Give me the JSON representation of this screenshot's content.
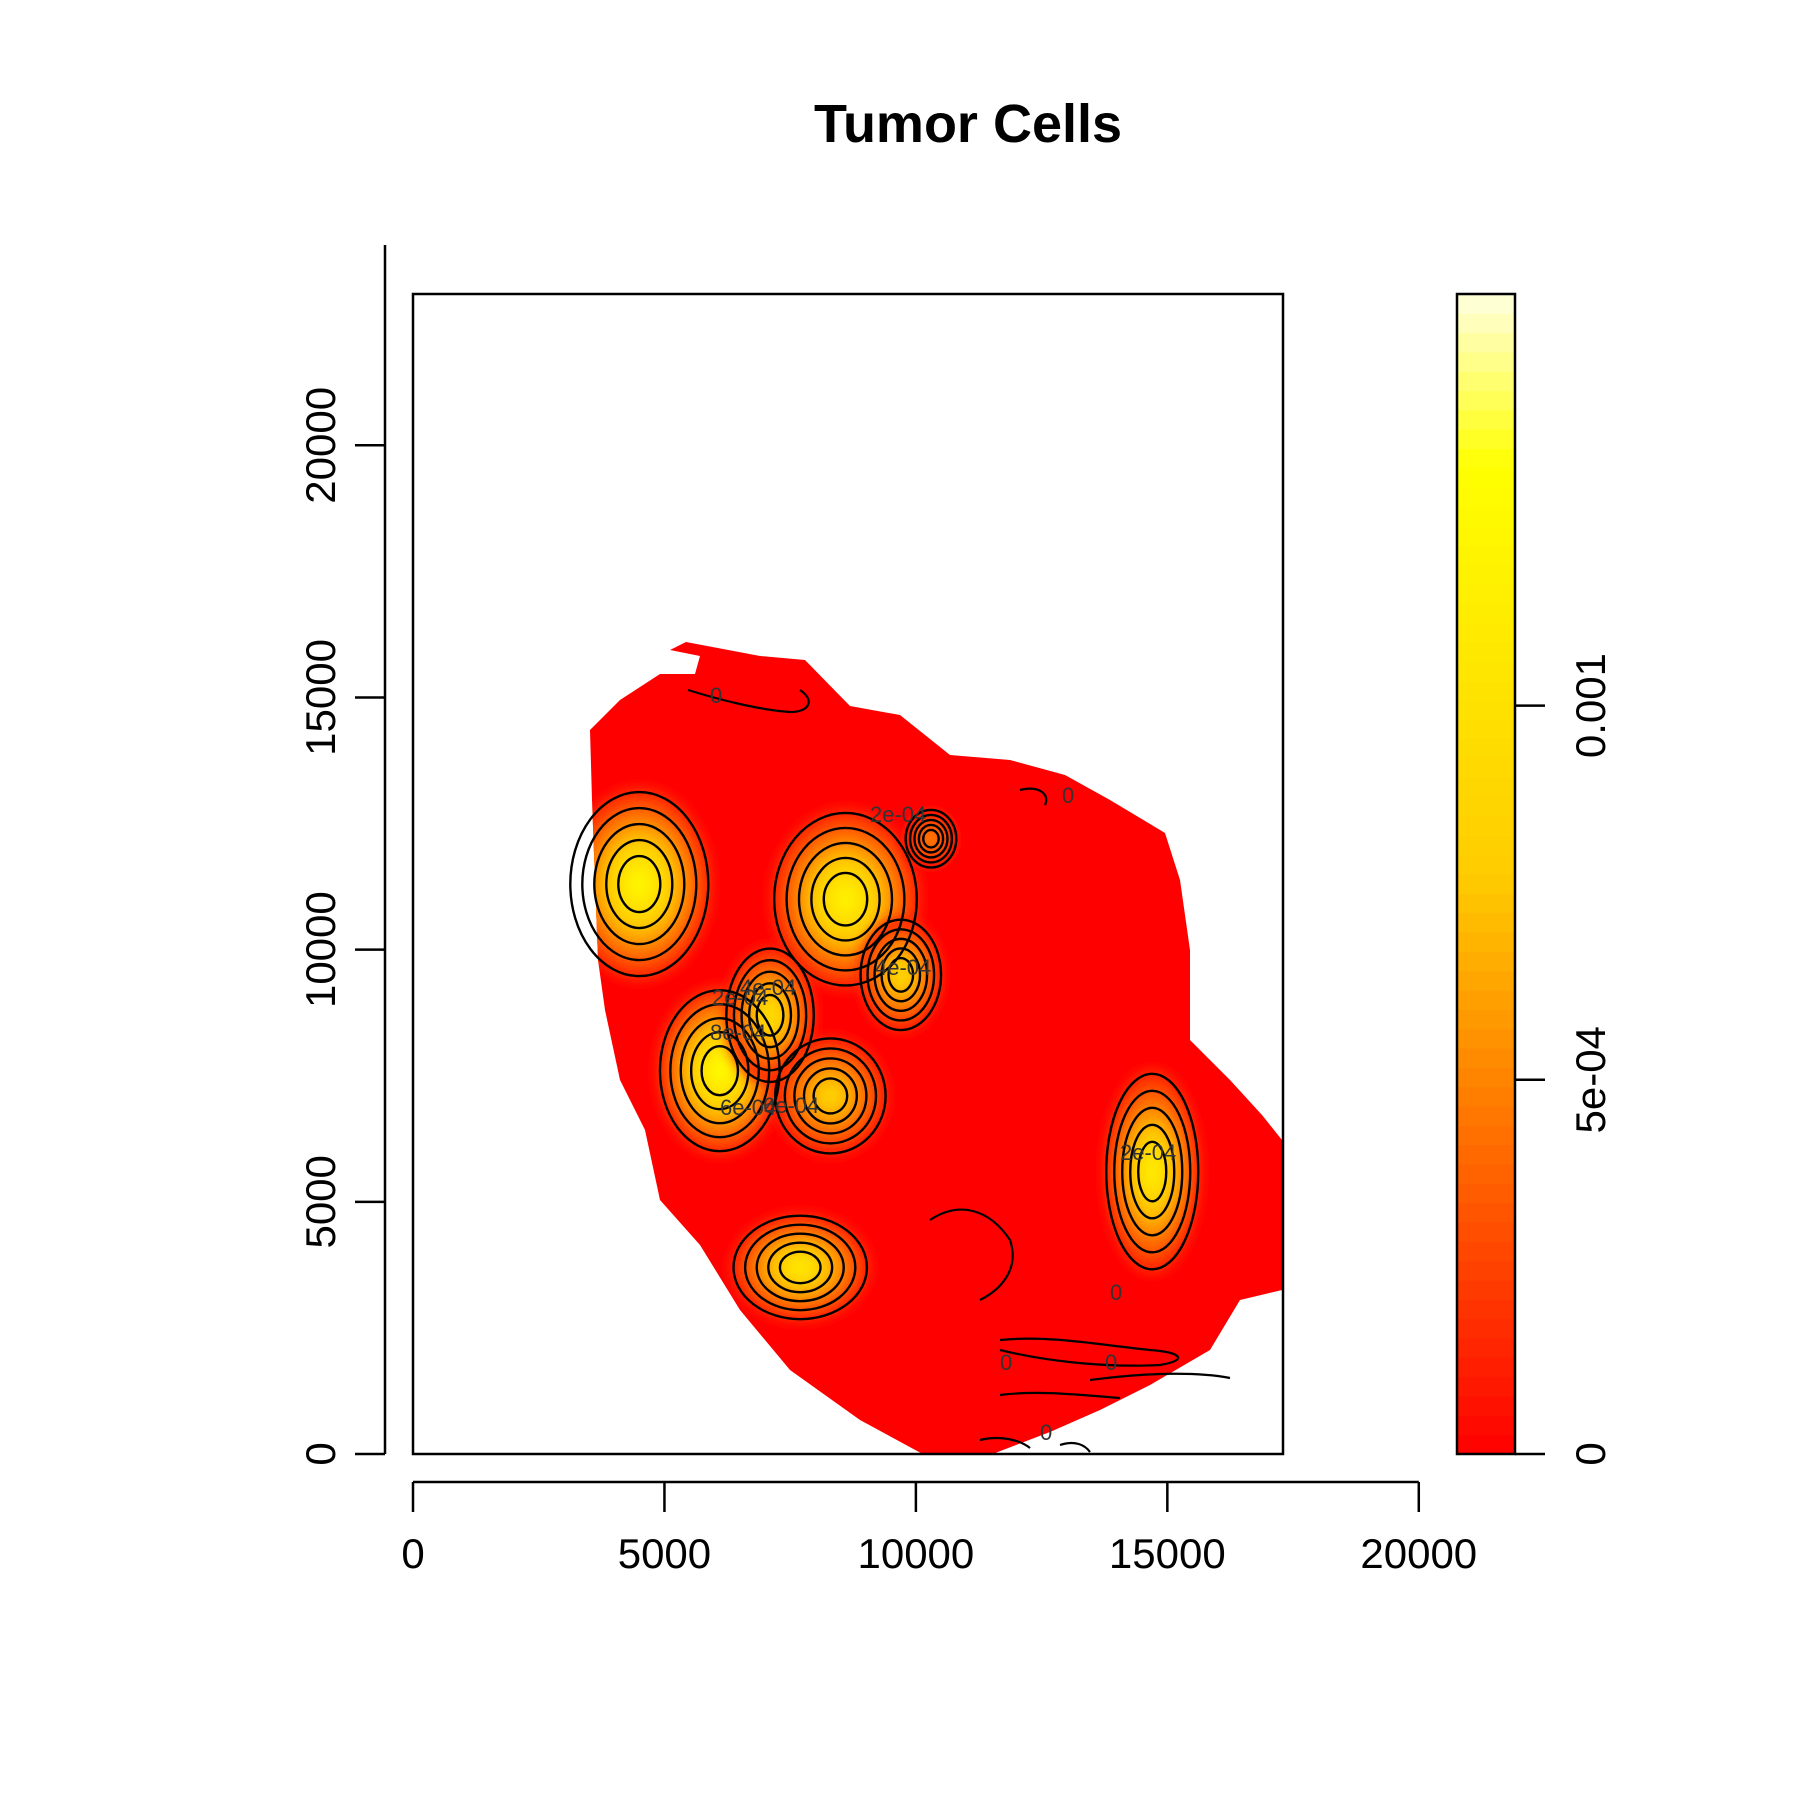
{
  "chart_data": {
    "type": "heatmap",
    "title": "Tumor Cells",
    "xlabel": "",
    "ylabel": "",
    "xlim": [
      0,
      17300
    ],
    "ylim": [
      0,
      23000
    ],
    "x_ticks": [
      "0",
      "5000",
      "10000",
      "15000",
      "20000"
    ],
    "y_ticks": [
      "0",
      "5000",
      "10000",
      "15000",
      "20000"
    ],
    "colorbar": {
      "range": [
        0,
        0.00155
      ],
      "ticks": [
        "0",
        "5e-04",
        "0.001"
      ],
      "tick_values": [
        0,
        0.0005,
        0.001
      ],
      "palette": "heat",
      "colors": [
        "#ff0000",
        "#ff8000",
        "#ffff00",
        "#ffffe0"
      ]
    },
    "hotspots": [
      {
        "x": 4500,
        "y": 11300,
        "peak": 0.0012
      },
      {
        "x": 8600,
        "y": 11000,
        "peak": 0.00115
      },
      {
        "x": 9700,
        "y": 9500,
        "peak": 0.0009
      },
      {
        "x": 10300,
        "y": 12200,
        "peak": 0.0005
      },
      {
        "x": 6100,
        "y": 7600,
        "peak": 0.00125
      },
      {
        "x": 7100,
        "y": 8700,
        "peak": 0.00095
      },
      {
        "x": 8300,
        "y": 7100,
        "peak": 0.00085
      },
      {
        "x": 7700,
        "y": 3700,
        "peak": 0.00105
      },
      {
        "x": 14700,
        "y": 5600,
        "peak": 0.0011
      }
    ],
    "contour_labels": [
      "0",
      "0",
      "0",
      "0",
      "0",
      "0",
      "2e-04",
      "2e-04",
      "2e-04",
      "4e-04",
      "4e-04",
      "6e-04",
      "6e-04",
      "8e-04"
    ]
  }
}
